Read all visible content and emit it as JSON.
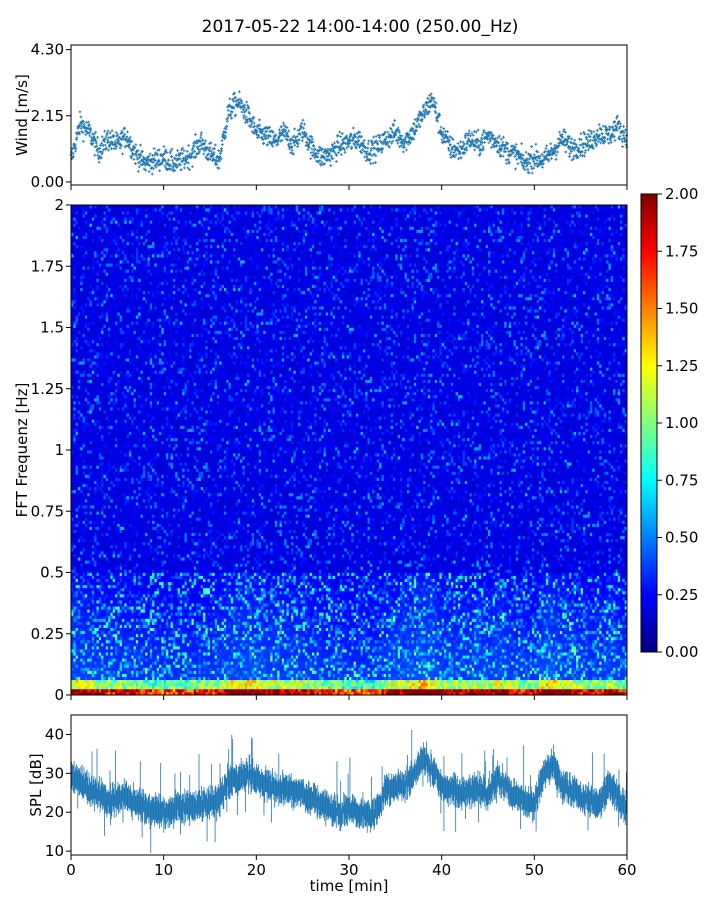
{
  "chart_data": [
    {
      "type": "scatter",
      "title": "2017-05-22 14:00-14:00 (250.00_Hz)",
      "ylabel": "Wind [m/s]",
      "xlabel": "",
      "xlim": [
        0,
        60
      ],
      "ylim": [
        -0.1,
        4.45
      ],
      "yticks": [
        "0.00",
        "2.15",
        "4.30"
      ],
      "color": "#1f77b4",
      "marker": "+",
      "samples_per_min": 30,
      "key_points": [
        {
          "x": 0,
          "y": 0.7
        },
        {
          "x": 1,
          "y": 1.9
        },
        {
          "x": 2,
          "y": 1.6
        },
        {
          "x": 3,
          "y": 1.0
        },
        {
          "x": 4,
          "y": 1.4
        },
        {
          "x": 5,
          "y": 1.2
        },
        {
          "x": 6,
          "y": 1.5
        },
        {
          "x": 7,
          "y": 0.9
        },
        {
          "x": 8,
          "y": 0.6
        },
        {
          "x": 9,
          "y": 0.7
        },
        {
          "x": 10,
          "y": 0.8
        },
        {
          "x": 11,
          "y": 0.6
        },
        {
          "x": 12,
          "y": 0.7
        },
        {
          "x": 13,
          "y": 0.9
        },
        {
          "x": 14,
          "y": 1.3
        },
        {
          "x": 15,
          "y": 0.9
        },
        {
          "x": 16,
          "y": 0.7
        },
        {
          "x": 17,
          "y": 2.3
        },
        {
          "x": 18,
          "y": 2.6
        },
        {
          "x": 19,
          "y": 2.2
        },
        {
          "x": 20,
          "y": 1.6
        },
        {
          "x": 21,
          "y": 1.5
        },
        {
          "x": 22,
          "y": 1.3
        },
        {
          "x": 23,
          "y": 1.6
        },
        {
          "x": 24,
          "y": 1.2
        },
        {
          "x": 25,
          "y": 1.7
        },
        {
          "x": 26,
          "y": 1.1
        },
        {
          "x": 27,
          "y": 0.8
        },
        {
          "x": 28,
          "y": 0.9
        },
        {
          "x": 29,
          "y": 1.2
        },
        {
          "x": 30,
          "y": 1.3
        },
        {
          "x": 31,
          "y": 1.4
        },
        {
          "x": 32,
          "y": 1.0
        },
        {
          "x": 33,
          "y": 1.1
        },
        {
          "x": 34,
          "y": 1.4
        },
        {
          "x": 35,
          "y": 1.6
        },
        {
          "x": 36,
          "y": 1.3
        },
        {
          "x": 37,
          "y": 1.7
        },
        {
          "x": 38,
          "y": 2.2
        },
        {
          "x": 39,
          "y": 2.7
        },
        {
          "x": 40,
          "y": 1.6
        },
        {
          "x": 41,
          "y": 1.1
        },
        {
          "x": 42,
          "y": 1.0
        },
        {
          "x": 43,
          "y": 1.4
        },
        {
          "x": 44,
          "y": 1.2
        },
        {
          "x": 45,
          "y": 1.5
        },
        {
          "x": 46,
          "y": 1.3
        },
        {
          "x": 47,
          "y": 1.0
        },
        {
          "x": 48,
          "y": 0.9
        },
        {
          "x": 49,
          "y": 0.6
        },
        {
          "x": 50,
          "y": 0.8
        },
        {
          "x": 51,
          "y": 0.7
        },
        {
          "x": 52,
          "y": 1.0
        },
        {
          "x": 53,
          "y": 1.4
        },
        {
          "x": 54,
          "y": 1.1
        },
        {
          "x": 55,
          "y": 1.2
        },
        {
          "x": 56,
          "y": 1.3
        },
        {
          "x": 57,
          "y": 1.6
        },
        {
          "x": 58,
          "y": 1.5
        },
        {
          "x": 59,
          "y": 1.8
        },
        {
          "x": 60,
          "y": 1.4
        }
      ]
    },
    {
      "type": "heatmap",
      "ylabel": "FFT Frequenz [Hz]",
      "xlim": [
        0,
        60
      ],
      "ylim": [
        0,
        2
      ],
      "yticks": [
        "0",
        "0.25",
        "0.5",
        "0.75",
        "1",
        "1.25",
        "1.5",
        "1.75",
        "2"
      ],
      "colormap": "jet",
      "clim": [
        0,
        2
      ],
      "colorbar_ticks": [
        "0.00",
        "0.25",
        "0.50",
        "0.75",
        "1.00",
        "1.25",
        "1.50",
        "1.75",
        "2.00"
      ],
      "time_bins": 240,
      "freq_bins": 160
    },
    {
      "type": "area",
      "ylabel": "SPL [dB]",
      "xlabel": "time [min]",
      "xlim": [
        0,
        60
      ],
      "ylim": [
        9,
        45
      ],
      "yticks": [
        "10",
        "20",
        "30",
        "40"
      ],
      "xticks": [
        "0",
        "10",
        "20",
        "30",
        "40",
        "50",
        "60"
      ],
      "color": "#1f77b4",
      "key_points": [
        {
          "x": 0,
          "y": 30
        },
        {
          "x": 2,
          "y": 26
        },
        {
          "x": 4,
          "y": 23
        },
        {
          "x": 6,
          "y": 24
        },
        {
          "x": 8,
          "y": 21
        },
        {
          "x": 10,
          "y": 20
        },
        {
          "x": 12,
          "y": 21
        },
        {
          "x": 14,
          "y": 22
        },
        {
          "x": 16,
          "y": 23
        },
        {
          "x": 17,
          "y": 28
        },
        {
          "x": 19,
          "y": 30
        },
        {
          "x": 21,
          "y": 27
        },
        {
          "x": 23,
          "y": 26
        },
        {
          "x": 25,
          "y": 25
        },
        {
          "x": 27,
          "y": 22
        },
        {
          "x": 29,
          "y": 20
        },
        {
          "x": 30,
          "y": 21
        },
        {
          "x": 32,
          "y": 19
        },
        {
          "x": 33,
          "y": 20
        },
        {
          "x": 34,
          "y": 26
        },
        {
          "x": 36,
          "y": 27
        },
        {
          "x": 37,
          "y": 30
        },
        {
          "x": 38,
          "y": 34
        },
        {
          "x": 39,
          "y": 31
        },
        {
          "x": 40,
          "y": 27
        },
        {
          "x": 42,
          "y": 25
        },
        {
          "x": 44,
          "y": 26
        },
        {
          "x": 45,
          "y": 25
        },
        {
          "x": 46,
          "y": 29
        },
        {
          "x": 48,
          "y": 24
        },
        {
          "x": 50,
          "y": 22
        },
        {
          "x": 51,
          "y": 30
        },
        {
          "x": 52,
          "y": 32
        },
        {
          "x": 53,
          "y": 27
        },
        {
          "x": 55,
          "y": 24
        },
        {
          "x": 57,
          "y": 22
        },
        {
          "x": 58,
          "y": 27
        },
        {
          "x": 60,
          "y": 21
        }
      ],
      "band_halfwidth_db": 3
    }
  ]
}
